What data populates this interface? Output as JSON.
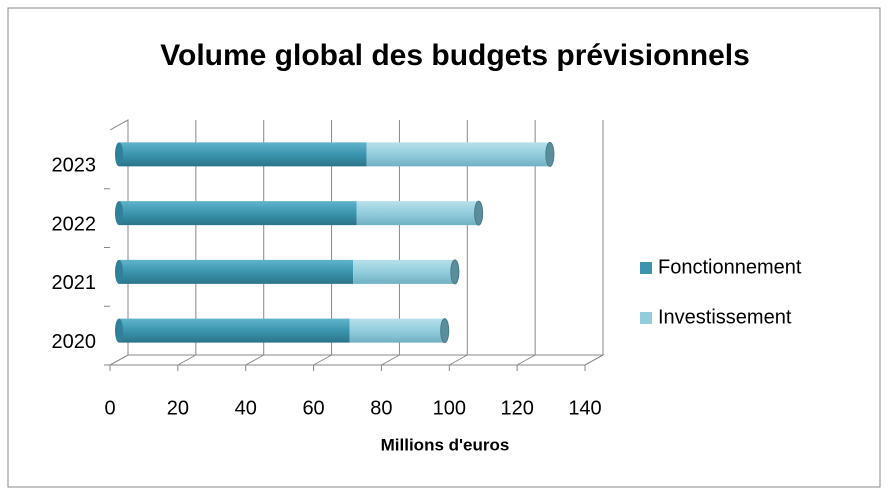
{
  "chart_data": {
    "type": "bar",
    "orientation": "horizontal",
    "stacked": true,
    "title": "Volume global des budgets prévisionnels",
    "xlabel": "Millions d'euros",
    "categories": [
      "2020",
      "2021",
      "2022",
      "2023"
    ],
    "series": [
      {
        "name": "Fonctionnement",
        "color": "#3b95ae",
        "values": [
          68,
          69,
          70,
          73
        ]
      },
      {
        "name": "Investissement",
        "color": "#93cddd",
        "values": [
          28,
          30,
          36,
          54
        ]
      }
    ],
    "xlim": [
      0,
      140
    ],
    "xticks": [
      0,
      20,
      40,
      60,
      80,
      100,
      120,
      140
    ],
    "grid": true,
    "legend": "right"
  }
}
